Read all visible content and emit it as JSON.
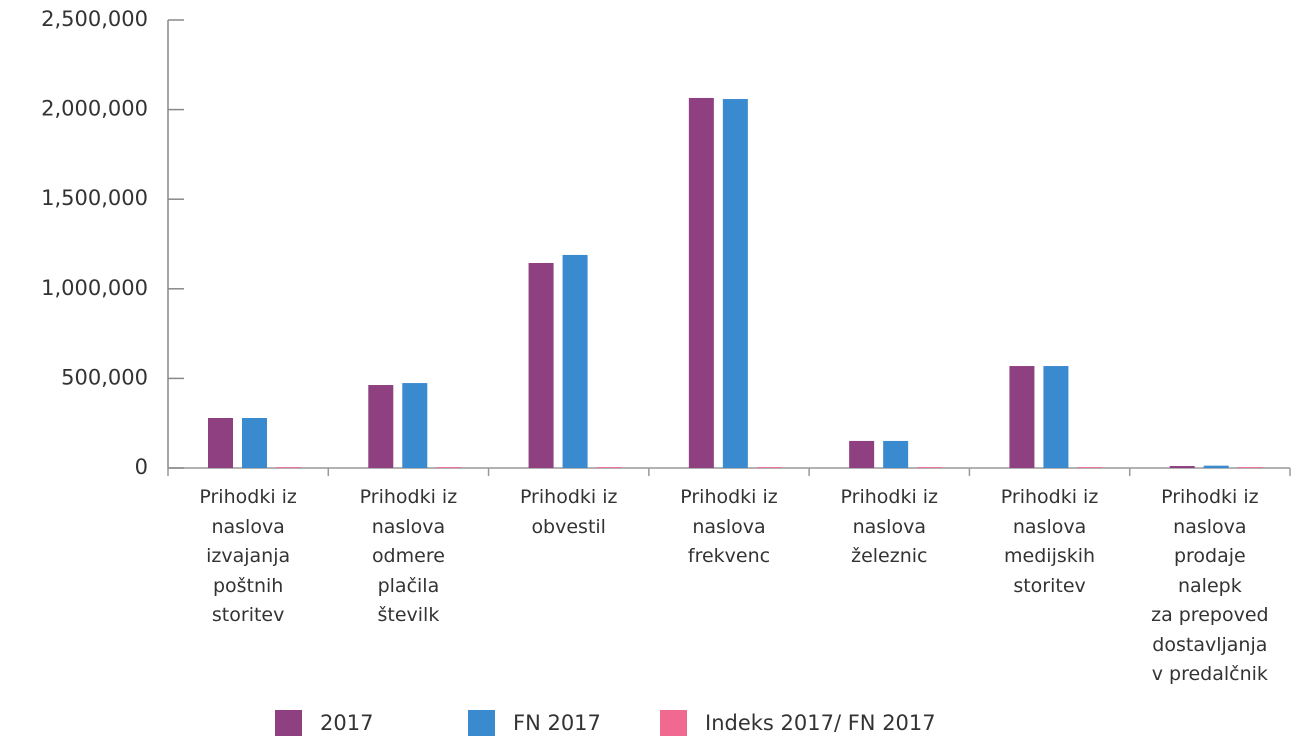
{
  "chart_data": {
    "type": "bar",
    "categories": [
      "Prihodki iz\nnaslova\nizvajanja\npoštnih\nstoritev",
      "Prihodki iz\nnaslova\nodmere\nplačila\nštevilk",
      "Prihodki iz\nobvestil",
      "Prihodki iz\nnaslova\nfrekvenc",
      "Prihodki iz\nnaslova\nželeznic",
      "Prihodki iz\nnaslova\nmedijskih\nstoritev",
      "Prihodki iz\nnaslova\nprodaje\nnalepk\nza prepoved\ndostavljanja\nv predalčnik"
    ],
    "series": [
      {
        "name": "2017",
        "color": "#8e4080",
        "values": [
          279000,
          463000,
          1144000,
          2065000,
          151000,
          569000,
          11000
        ]
      },
      {
        "name": "FN 2017",
        "color": "#3a8ad0",
        "values": [
          279000,
          474000,
          1189000,
          2059000,
          151000,
          569000,
          13000
        ]
      },
      {
        "name": "Indeks 2017/ FN 2017",
        "color": "#f06a8f",
        "values": [
          5000,
          5000,
          5000,
          5000,
          5000,
          5000,
          5000
        ]
      }
    ],
    "ylim": [
      0,
      2500000
    ],
    "yticks": [
      0,
      {
        "value": 500000,
        "label": "500,000"
      },
      {
        "value": 1000000,
        "label": "1,000,000"
      },
      {
        "value": 1500000,
        "label": "1,500,000"
      },
      {
        "value": 2000000,
        "label": "2,000,000"
      },
      {
        "value": 2500000,
        "label": "2,500,000"
      }
    ],
    "legend": "bottom"
  }
}
